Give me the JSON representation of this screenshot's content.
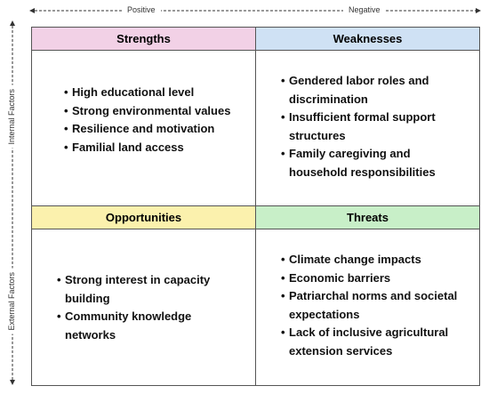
{
  "axes": {
    "top_left": "Positive",
    "top_right": "Negative",
    "left_top": "Internal Factors",
    "left_bottom": "External Factors"
  },
  "quadrants": [
    {
      "title": "Strengths",
      "items": [
        "High educational level",
        "Strong environmental values",
        "Resilience and motivation",
        "Familial land access"
      ]
    },
    {
      "title": "Weaknesses",
      "items": [
        "Gendered labor roles and discrimination",
        "Insufficient formal support structures",
        "Family caregiving and household responsibilities"
      ]
    },
    {
      "title": "Opportunities",
      "items": [
        "Strong interest in capacity building",
        "Community knowledge networks"
      ]
    },
    {
      "title": "Threats",
      "items": [
        "Climate change impacts",
        "Economic barriers",
        "Patriarchal norms and societal expectations",
        "Lack of inclusive agricultural extension services"
      ]
    }
  ]
}
